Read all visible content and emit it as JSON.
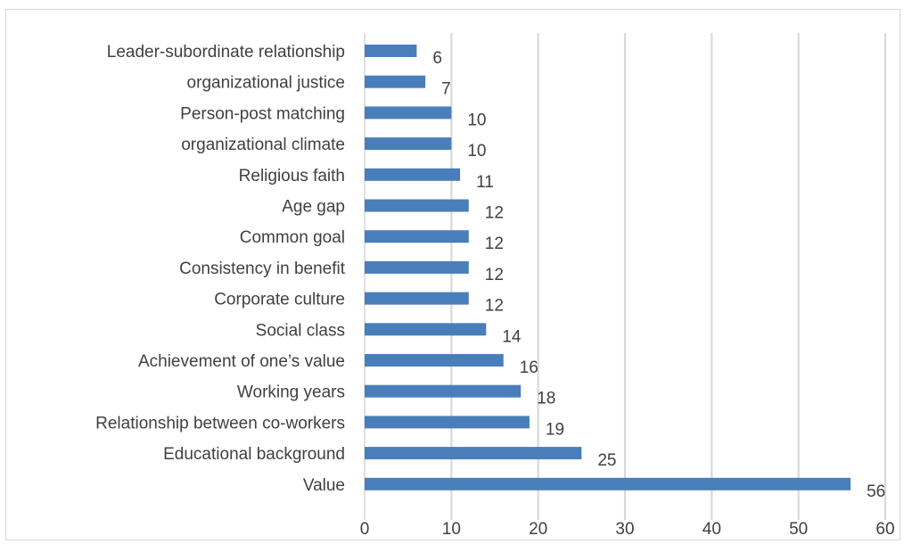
{
  "chart_data": {
    "type": "bar",
    "orientation": "horizontal",
    "categories": [
      "Leader-subordinate relationship",
      "organizational justice",
      "Person-post matching",
      "organizational climate",
      "Religious faith",
      "Age gap",
      "Common goal",
      "Consistency in benefit",
      "Corporate culture",
      "Social class",
      "Achievement of one’s value",
      "Working years",
      "Relationship between co-workers",
      "Educational background",
      "Value"
    ],
    "values": [
      6,
      7,
      10,
      10,
      11,
      12,
      12,
      12,
      12,
      14,
      16,
      18,
      19,
      25,
      56
    ],
    "x_ticks": [
      "0",
      "10",
      "20",
      "30",
      "40",
      "50",
      "60"
    ],
    "xlim": [
      0,
      60
    ],
    "title": "",
    "xlabel": "",
    "ylabel": "",
    "grid": true,
    "legend": "none",
    "bar_color": "#4a7ebb",
    "grid_color": "#d9d9d9",
    "text_color": "#404040"
  }
}
